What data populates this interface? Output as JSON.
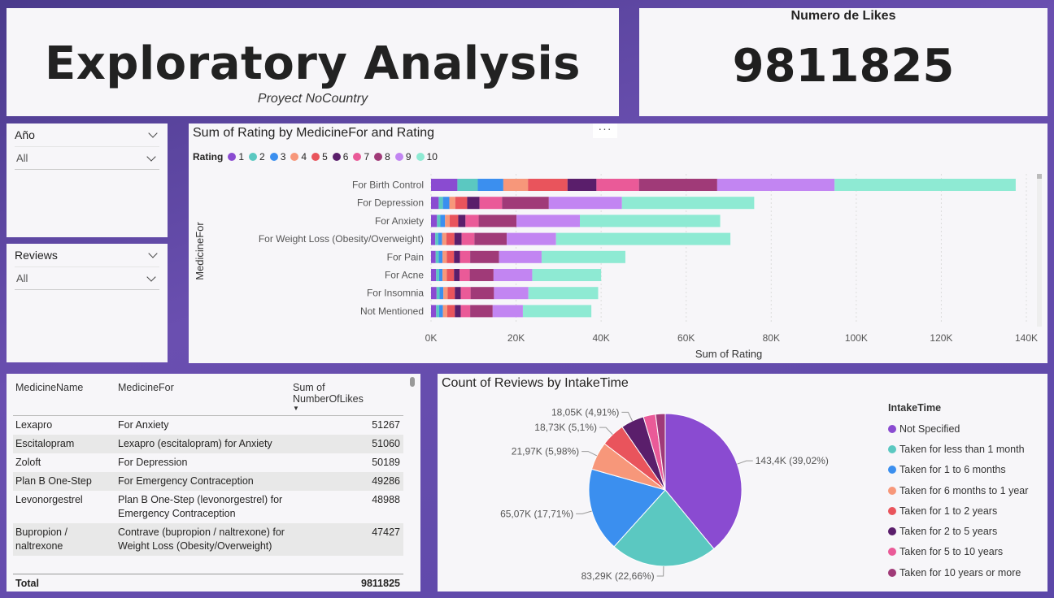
{
  "header": {
    "title": "Exploratory Analysis",
    "subtitle": "Proyect NoCountry"
  },
  "kpi": {
    "label": "Numero de Likes",
    "value": "9811825"
  },
  "slicers": [
    {
      "label": "Año",
      "value": "All"
    },
    {
      "label": "Reviews",
      "value": "All"
    }
  ],
  "rating_colors": [
    "#8a4bd1",
    "#5bc8c1",
    "#3b8fef",
    "#f7977a",
    "#e9545c",
    "#5a1e6b",
    "#ea5a98",
    "#a03a78",
    "#c285f2",
    "#8eead3"
  ],
  "chart_data": [
    {
      "type": "bar",
      "orientation": "horizontal",
      "stacked": true,
      "title": "Sum of Rating by MedicineFor and Rating",
      "xlabel": "Sum of Rating",
      "ylabel": "MedicineFor",
      "legend_title": "Rating",
      "categories": [
        "For Birth Control",
        "For Depression",
        "For Anxiety",
        "For Weight Loss (Obesity/Overweight)",
        "For Pain",
        "For Acne",
        "For Insomnia",
        "Not Mentioned"
      ],
      "xlim": [
        0,
        140000
      ],
      "xticks": [
        "0K",
        "20K",
        "40K",
        "60K",
        "80K",
        "100K",
        "120K",
        "140K"
      ],
      "series": [
        {
          "name": "1",
          "values": [
            6200,
            1800,
            1400,
            1000,
            1100,
            1200,
            1300,
            1200
          ]
        },
        {
          "name": "2",
          "values": [
            4800,
            1000,
            800,
            700,
            700,
            700,
            700,
            700
          ]
        },
        {
          "name": "3",
          "values": [
            6000,
            1500,
            1100,
            900,
            900,
            800,
            900,
            900
          ]
        },
        {
          "name": "4",
          "values": [
            5800,
            1400,
            1100,
            1000,
            1000,
            1000,
            1000,
            1000
          ]
        },
        {
          "name": "5",
          "values": [
            9300,
            2800,
            2000,
            1900,
            1700,
            1700,
            1700,
            1800
          ]
        },
        {
          "name": "6",
          "values": [
            6800,
            2900,
            1700,
            1700,
            1400,
            1300,
            1400,
            1400
          ]
        },
        {
          "name": "7",
          "values": [
            10000,
            5300,
            3100,
            3000,
            2400,
            2400,
            2300,
            2200
          ]
        },
        {
          "name": "8",
          "values": [
            18400,
            11000,
            8900,
            7600,
            6800,
            5600,
            5500,
            5300
          ]
        },
        {
          "name": "9",
          "values": [
            27600,
            17200,
            14900,
            11600,
            10000,
            9100,
            8100,
            7100
          ]
        },
        {
          "name": "10",
          "values": [
            42600,
            31100,
            33000,
            41000,
            19700,
            16200,
            16400,
            16100
          ]
        }
      ]
    },
    {
      "type": "pie",
      "title": "Count of Reviews by IntakeTime",
      "legend_title": "IntakeTime",
      "slices": [
        {
          "name": "Not Specified",
          "value": 143.4,
          "label": "143,4K (39,02%)",
          "color": "#8a4bd1"
        },
        {
          "name": "Taken for less than 1 month",
          "value": 83.29,
          "label": "83,29K (22,66%)",
          "color": "#5bc8c1"
        },
        {
          "name": "Taken for 1 to 6 months",
          "value": 65.07,
          "label": "65,07K (17,71%)",
          "color": "#3b8fef"
        },
        {
          "name": "Taken for 6 months to 1 year",
          "value": 21.97,
          "label": "21,97K (5,98%)",
          "color": "#f7977a"
        },
        {
          "name": "Taken for 1 to 2 years",
          "value": 18.73,
          "label": "18,73K (5,1%)",
          "color": "#e9545c"
        },
        {
          "name": "Taken for 2 to 5 years",
          "value": 18.05,
          "label": "18,05K (4,91%)",
          "color": "#5a1e6b"
        },
        {
          "name": "Taken for 5 to 10 years",
          "value": 9.5,
          "label": "",
          "color": "#ea5a98"
        },
        {
          "name": "Taken for 10 years or more",
          "value": 7.5,
          "label": "",
          "color": "#a03a78"
        }
      ]
    }
  ],
  "table": {
    "headers": [
      "MedicineName",
      "MedicineFor",
      "Sum of\nNumberOfLikes"
    ],
    "rows": [
      [
        "Lexapro",
        "For Anxiety",
        "51267"
      ],
      [
        "Escitalopram",
        "Lexapro (escitalopram) for Anxiety",
        "51060"
      ],
      [
        "Zoloft",
        "For Depression",
        "50189"
      ],
      [
        "Plan B One-Step",
        "For Emergency Contraception",
        "49286"
      ],
      [
        "Levonorgestrel",
        "Plan B One-Step (levonorgestrel) for Emergency Contraception",
        "48988"
      ],
      [
        "Bupropion / naltrexone",
        "Contrave (bupropion / naltrexone) for Weight Loss (Obesity/Overweight)",
        "47427"
      ]
    ],
    "total_label": "Total",
    "total_value": "9811825"
  }
}
